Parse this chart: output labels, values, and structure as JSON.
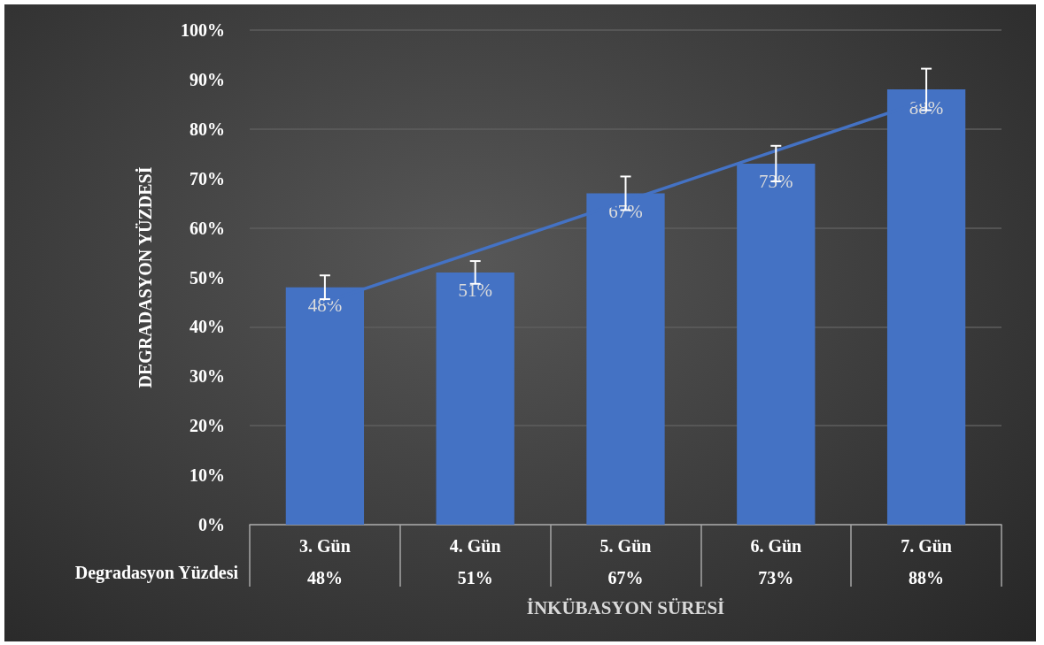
{
  "chart_data": {
    "type": "bar",
    "xlabel": "İNKÜBASYON SÜRESİ",
    "ylabel": "DEGRADASYON YÜZDESİ",
    "categories": [
      "3. Gün",
      "4. Gün",
      "5. Gün",
      "6. Gün",
      "7. Gün"
    ],
    "series": [
      {
        "name": "Degradasyon Yüzdesi",
        "color": "#4472c4",
        "values": [
          48,
          51,
          67,
          73,
          88
        ],
        "errors": [
          2.4,
          2.3,
          3.4,
          3.6,
          4.2
        ],
        "value_labels": [
          "48%",
          "51%",
          "67%",
          "73%",
          "88%"
        ]
      },
      {
        "type": "line",
        "color": "#4472c4",
        "values": [
          45.0,
          55.2,
          65.4,
          75.6,
          85.8
        ]
      }
    ],
    "ylim": [
      0,
      100
    ],
    "yticks": [
      {
        "value": 0,
        "label": "0%"
      },
      {
        "value": 10,
        "label": "10%"
      },
      {
        "value": 20,
        "label": "20%"
      },
      {
        "value": 30,
        "label": "30%"
      },
      {
        "value": 40,
        "label": "40%"
      },
      {
        "value": 50,
        "label": "50%"
      },
      {
        "value": 60,
        "label": "60%"
      },
      {
        "value": 70,
        "label": "70%"
      },
      {
        "value": 80,
        "label": "80%"
      },
      {
        "value": 90,
        "label": "90%"
      },
      {
        "value": 100,
        "label": "100%"
      }
    ],
    "grid": "y"
  }
}
